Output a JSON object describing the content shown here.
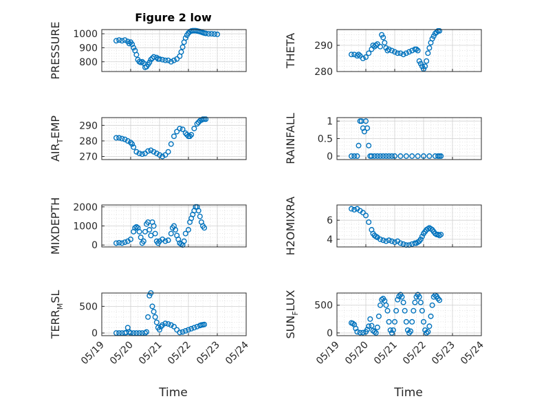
{
  "figure": {
    "title": "Figure 2 low",
    "xlabel": "Time"
  },
  "chart_data": [
    {
      "type": "scatter",
      "title": "Figure 2 low",
      "ylabel": "PRESSURE",
      "ylim": [
        730,
        1030
      ],
      "yticks": [
        {
          "v": 800,
          "label": "800"
        },
        {
          "v": 900,
          "label": "900"
        },
        {
          "v": 1000,
          "label": "1000"
        }
      ],
      "xlim": [
        0,
        5
      ],
      "x": [
        0.5,
        0.6,
        0.7,
        0.8,
        0.9,
        0.95,
        1.0,
        1.05,
        1.1,
        1.15,
        1.2,
        1.25,
        1.3,
        1.35,
        1.4,
        1.45,
        1.5,
        1.55,
        1.6,
        1.65,
        1.7,
        1.75,
        1.8,
        1.9,
        1.95,
        2.0,
        2.1,
        2.2,
        2.3,
        2.4,
        2.5,
        2.6,
        2.7,
        2.75,
        2.8,
        2.85,
        2.9,
        2.95,
        3.0,
        3.05,
        3.1,
        3.15,
        3.2,
        3.25,
        3.3,
        3.35,
        3.4,
        3.45,
        3.5,
        3.55,
        3.6,
        3.7,
        3.8,
        3.9,
        4.0
      ],
      "y": [
        950,
        955,
        950,
        955,
        945,
        930,
        940,
        925,
        900,
        880,
        850,
        815,
        800,
        795,
        800,
        790,
        760,
        765,
        780,
        795,
        815,
        825,
        835,
        830,
        820,
        820,
        815,
        810,
        810,
        800,
        810,
        820,
        840,
        870,
        905,
        940,
        970,
        990,
        1005,
        1015,
        1020,
        1022,
        1022,
        1022,
        1020,
        1018,
        1015,
        1012,
        1008,
        1005,
        1003,
        1000,
        1000,
        998,
        996
      ]
    },
    {
      "type": "scatter",
      "ylabel": "THETA",
      "ylim": [
        280,
        296
      ],
      "yticks": [
        {
          "v": 280,
          "label": "280"
        },
        {
          "v": 290,
          "label": "290"
        }
      ],
      "xlim": [
        0,
        5
      ],
      "x": [
        0.5,
        0.6,
        0.7,
        0.75,
        0.8,
        0.9,
        1.0,
        1.1,
        1.2,
        1.25,
        1.3,
        1.35,
        1.4,
        1.5,
        1.55,
        1.6,
        1.65,
        1.7,
        1.75,
        1.8,
        1.9,
        2.0,
        2.1,
        2.2,
        2.3,
        2.4,
        2.5,
        2.6,
        2.7,
        2.75,
        2.8,
        2.85,
        2.9,
        2.95,
        3.0,
        3.05,
        3.1,
        3.15,
        3.2,
        3.25,
        3.3,
        3.35,
        3.4,
        3.45,
        3.5,
        3.55
      ],
      "y": [
        286.5,
        286.5,
        286,
        286.5,
        286,
        285,
        285.5,
        287,
        288.5,
        290,
        289.5,
        290,
        290.5,
        289.5,
        294,
        293,
        291,
        289,
        288,
        288.5,
        288,
        287.5,
        287,
        287,
        286.5,
        287,
        287.5,
        288,
        288.5,
        288.5,
        288,
        284,
        283,
        282,
        281,
        282,
        284,
        287,
        289,
        291,
        292.5,
        293.5,
        294.5,
        295,
        295.5,
        295.5
      ]
    },
    {
      "type": "scatter",
      "ylabel": "AIR_TEMP",
      "ylim": [
        268,
        295
      ],
      "yticks": [
        {
          "v": 270,
          "label": "270"
        },
        {
          "v": 280,
          "label": "280"
        },
        {
          "v": 290,
          "label": "290"
        }
      ],
      "xlim": [
        0,
        5
      ],
      "x": [
        0.5,
        0.6,
        0.7,
        0.8,
        0.9,
        1.0,
        1.05,
        1.1,
        1.2,
        1.3,
        1.4,
        1.5,
        1.6,
        1.7,
        1.8,
        1.9,
        2.0,
        2.1,
        2.2,
        2.3,
        2.4,
        2.5,
        2.6,
        2.7,
        2.8,
        2.9,
        2.95,
        3.0,
        3.05,
        3.1,
        3.2,
        3.3,
        3.35,
        3.4,
        3.45,
        3.5,
        3.55,
        3.6
      ],
      "y": [
        282,
        282,
        281.5,
        281,
        280,
        279,
        278,
        276,
        273,
        272,
        271.5,
        272,
        273.5,
        274,
        273,
        272,
        271,
        270,
        271,
        273,
        278,
        283,
        286,
        288,
        287.5,
        285,
        284,
        283,
        283,
        284,
        288,
        291,
        292,
        293,
        293.5,
        294,
        294,
        294
      ]
    },
    {
      "type": "scatter",
      "ylabel": "RAINFALL",
      "ylim": [
        -0.1,
        1.1
      ],
      "yticks": [
        {
          "v": 0,
          "label": "0"
        },
        {
          "v": 0.5,
          "label": "0.5"
        },
        {
          "v": 1,
          "label": "1"
        }
      ],
      "xlim": [
        0,
        5
      ],
      "x": [
        0.5,
        0.6,
        0.7,
        0.75,
        0.8,
        0.85,
        0.9,
        0.95,
        1.0,
        1.05,
        1.1,
        1.15,
        1.2,
        1.3,
        1.4,
        1.5,
        1.6,
        1.7,
        1.8,
        1.9,
        2.0,
        2.2,
        2.4,
        2.6,
        2.8,
        3.0,
        3.2,
        3.4,
        3.5,
        3.55,
        3.6
      ],
      "y": [
        0,
        0,
        0,
        0.3,
        1,
        1,
        0.8,
        0.7,
        1,
        0.8,
        0.3,
        0,
        0,
        0,
        0,
        0,
        0,
        0,
        0,
        0,
        0,
        0,
        0,
        0,
        0,
        0,
        0,
        0,
        0,
        0,
        0
      ]
    },
    {
      "type": "scatter",
      "ylabel": "MIXDEPTH",
      "ylim": [
        -100,
        2100
      ],
      "yticks": [
        {
          "v": 0,
          "label": "0"
        },
        {
          "v": 1000,
          "label": "1000"
        },
        {
          "v": 2000,
          "label": "2000"
        }
      ],
      "xlim": [
        0,
        5
      ],
      "x": [
        0.5,
        0.6,
        0.7,
        0.8,
        0.9,
        1.0,
        1.1,
        1.15,
        1.2,
        1.25,
        1.3,
        1.35,
        1.4,
        1.45,
        1.5,
        1.55,
        1.6,
        1.65,
        1.7,
        1.75,
        1.8,
        1.85,
        1.9,
        1.95,
        2.0,
        2.1,
        2.2,
        2.3,
        2.4,
        2.45,
        2.5,
        2.55,
        2.6,
        2.65,
        2.7,
        2.75,
        2.8,
        2.85,
        2.9,
        3.0,
        3.05,
        3.1,
        3.15,
        3.2,
        3.25,
        3.3,
        3.35,
        3.4,
        3.45,
        3.5,
        3.55
      ],
      "y": [
        100,
        120,
        100,
        150,
        200,
        300,
        700,
        900,
        950,
        900,
        700,
        400,
        100,
        200,
        700,
        1100,
        1200,
        800,
        500,
        1200,
        1000,
        600,
        200,
        100,
        200,
        300,
        200,
        250,
        600,
        900,
        1000,
        800,
        500,
        300,
        100,
        50,
        0,
        200,
        600,
        800,
        1200,
        1400,
        1600,
        1800,
        2000,
        2000,
        1800,
        1500,
        1200,
        1000,
        900
      ]
    },
    {
      "type": "scatter",
      "ylabel": "H2OMIXRA",
      "ylim": [
        3.2,
        7.6
      ],
      "yticks": [
        {
          "v": 4,
          "label": "4"
        },
        {
          "v": 6,
          "label": "6"
        }
      ],
      "xlim": [
        0,
        5
      ],
      "x": [
        0.5,
        0.6,
        0.7,
        0.8,
        0.9,
        1.0,
        1.1,
        1.2,
        1.25,
        1.3,
        1.35,
        1.4,
        1.5,
        1.6,
        1.7,
        1.8,
        1.9,
        2.0,
        2.1,
        2.2,
        2.3,
        2.4,
        2.5,
        2.6,
        2.7,
        2.75,
        2.8,
        2.85,
        2.9,
        2.95,
        3.0,
        3.05,
        3.1,
        3.15,
        3.2,
        3.25,
        3.3,
        3.35,
        3.4,
        3.45,
        3.5,
        3.55,
        3.6
      ],
      "y": [
        7.2,
        7.1,
        7.2,
        7.0,
        6.8,
        6.5,
        5.8,
        5.0,
        4.6,
        4.4,
        4.3,
        4.2,
        4.0,
        3.9,
        3.8,
        3.9,
        3.8,
        3.7,
        3.8,
        3.6,
        3.5,
        3.4,
        3.4,
        3.5,
        3.6,
        3.6,
        3.7,
        3.8,
        4.0,
        4.3,
        4.6,
        4.8,
        5.0,
        5.1,
        5.2,
        5.1,
        5.0,
        4.8,
        4.6,
        4.5,
        4.5,
        4.4,
        4.5
      ]
    },
    {
      "type": "scatter",
      "ylabel": "TERR_MSL",
      "ylim": [
        -50,
        750
      ],
      "yticks": [
        {
          "v": 0,
          "label": "0"
        },
        {
          "v": 500,
          "label": "500"
        }
      ],
      "xlim": [
        0,
        5
      ],
      "x": [
        0.5,
        0.6,
        0.7,
        0.8,
        0.85,
        0.9,
        0.95,
        1.0,
        1.1,
        1.2,
        1.3,
        1.4,
        1.5,
        1.55,
        1.6,
        1.65,
        1.7,
        1.75,
        1.8,
        1.85,
        1.9,
        1.95,
        2.0,
        2.05,
        2.1,
        2.2,
        2.3,
        2.4,
        2.5,
        2.6,
        2.7,
        2.8,
        2.9,
        3.0,
        3.1,
        3.2,
        3.3,
        3.4,
        3.45,
        3.5,
        3.55
      ],
      "y": [
        0,
        0,
        0,
        0,
        10,
        100,
        20,
        0,
        0,
        0,
        0,
        0,
        0,
        20,
        300,
        700,
        750,
        500,
        400,
        300,
        200,
        100,
        60,
        120,
        150,
        180,
        170,
        150,
        120,
        60,
        10,
        20,
        40,
        60,
        80,
        100,
        120,
        140,
        150,
        155,
        160
      ]
    },
    {
      "type": "scatter",
      "ylabel": "SUN_FLUX",
      "ylim": [
        -50,
        720
      ],
      "yticks": [
        {
          "v": 0,
          "label": "0"
        },
        {
          "v": 500,
          "label": "500"
        }
      ],
      "xlim": [
        0,
        5
      ],
      "x": [
        0.5,
        0.55,
        0.6,
        0.65,
        0.7,
        0.8,
        0.9,
        1.0,
        1.05,
        1.1,
        1.15,
        1.2,
        1.25,
        1.3,
        1.35,
        1.4,
        1.45,
        1.5,
        1.55,
        1.6,
        1.65,
        1.7,
        1.75,
        1.8,
        1.85,
        1.9,
        1.95,
        2.0,
        2.05,
        2.1,
        2.15,
        2.2,
        2.25,
        2.3,
        2.35,
        2.4,
        2.45,
        2.5,
        2.55,
        2.6,
        2.65,
        2.7,
        2.75,
        2.8,
        2.85,
        2.9,
        2.95,
        3.0,
        3.05,
        3.1,
        3.15,
        3.2,
        3.25,
        3.3,
        3.35,
        3.4,
        3.45,
        3.5,
        3.55
      ],
      "y": [
        180,
        170,
        150,
        80,
        20,
        5,
        5,
        20,
        60,
        120,
        250,
        130,
        40,
        20,
        0,
        100,
        300,
        500,
        600,
        620,
        580,
        500,
        400,
        200,
        50,
        0,
        50,
        200,
        400,
        600,
        660,
        690,
        650,
        550,
        400,
        200,
        50,
        0,
        30,
        200,
        400,
        550,
        650,
        690,
        650,
        550,
        400,
        200,
        50,
        0,
        20,
        120,
        300,
        500,
        650,
        680,
        660,
        620,
        590
      ]
    }
  ],
  "xaxis": {
    "min": 0,
    "max": 5,
    "ticks": [
      {
        "v": 0,
        "label": "05/19"
      },
      {
        "v": 1,
        "label": "05/20"
      },
      {
        "v": 2,
        "label": "05/21"
      },
      {
        "v": 3,
        "label": "05/22"
      },
      {
        "v": 4,
        "label": "05/23"
      },
      {
        "v": 5,
        "label": "05/24"
      }
    ]
  },
  "colors": {
    "marker": "#0072BD",
    "axis": "#262626"
  }
}
